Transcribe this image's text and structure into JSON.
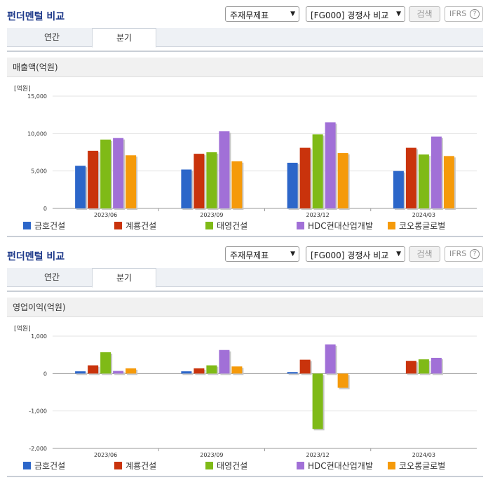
{
  "panels": [
    {
      "title": "펀더멘털 비교",
      "select_statement": "주재무제표",
      "select_compare": "[FG000] 경쟁사 비교",
      "search_label": "검색",
      "ifrs_label": "IFRS",
      "help_label": "?",
      "tabs": [
        {
          "label": "연간"
        },
        {
          "label": "분기"
        }
      ],
      "active_tab": 1,
      "subheading": "매출액(억원)",
      "chart_data": {
        "type": "bar",
        "unit_label": "[억원]",
        "categories": [
          "2023/06",
          "2023/09",
          "2023/12",
          "2024/03"
        ],
        "ylim": [
          0,
          15000
        ],
        "yticks": [
          0,
          5000,
          10000,
          15000
        ],
        "ytick_labels": [
          "0",
          "5,000",
          "10,000",
          "15,000"
        ],
        "grid": true,
        "legend_position": "bottom",
        "series": [
          {
            "name": "금호건설",
            "color": "#2c66c9",
            "values": [
              5700,
              5200,
              6100,
              5000
            ]
          },
          {
            "name": "계룡건설",
            "color": "#c9330c",
            "values": [
              7700,
              7300,
              8100,
              8100
            ]
          },
          {
            "name": "태영건설",
            "color": "#7fba17",
            "values": [
              9200,
              7500,
              9900,
              7200
            ]
          },
          {
            "name": "HDC현대산업개발",
            "color": "#a170d7",
            "values": [
              9400,
              10300,
              11500,
              9600
            ]
          },
          {
            "name": "코오롱글로벌",
            "color": "#f59a0a",
            "values": [
              7100,
              6300,
              7400,
              7000
            ]
          }
        ]
      }
    },
    {
      "title": "펀더멘털 비교",
      "select_statement": "주재무제표",
      "select_compare": "[FG000] 경쟁사 비교",
      "search_label": "검색",
      "ifrs_label": "IFRS",
      "help_label": "?",
      "tabs": [
        {
          "label": "연간"
        },
        {
          "label": "분기"
        }
      ],
      "active_tab": 1,
      "subheading": "영업이익(억원)",
      "chart_data": {
        "type": "bar",
        "unit_label": "[억원]",
        "categories": [
          "2023/06",
          "2023/09",
          "2023/12",
          "2024/03"
        ],
        "ylim": [
          -2000,
          1000
        ],
        "yticks": [
          -2000,
          -1000,
          0,
          1000
        ],
        "ytick_labels": [
          "-2,000",
          "-1,000",
          "0",
          "1,000"
        ],
        "grid": true,
        "legend_position": "bottom",
        "series": [
          {
            "name": "금호건설",
            "color": "#2c66c9",
            "values": [
              60,
              60,
              40,
              null
            ]
          },
          {
            "name": "계룡건설",
            "color": "#c9330c",
            "values": [
              220,
              140,
              370,
              340
            ]
          },
          {
            "name": "태영건설",
            "color": "#7fba17",
            "values": [
              570,
              220,
              -1480,
              380
            ]
          },
          {
            "name": "HDC현대산업개발",
            "color": "#a170d7",
            "values": [
              70,
              630,
              780,
              420
            ]
          },
          {
            "name": "코오롱글로벌",
            "color": "#f59a0a",
            "values": [
              140,
              190,
              -380,
              null
            ]
          }
        ]
      }
    }
  ]
}
